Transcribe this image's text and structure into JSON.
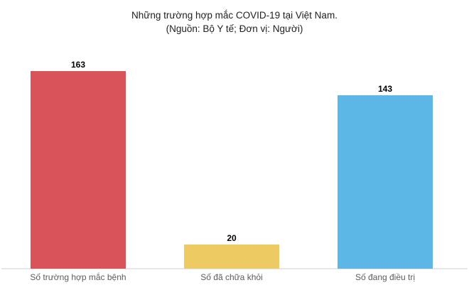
{
  "chart_data": {
    "type": "bar",
    "title": "Những trường hợp mắc COVID-19 tại Việt Nam.",
    "subtitle": "(Nguồn: Bộ Y tế; Đơn vị: Người)",
    "categories": [
      "Số trường hợp mắc bệnh",
      "Số đã chữa khỏi",
      "Số đang điều trị"
    ],
    "values": [
      163,
      20,
      143
    ],
    "series_colors": [
      "#d9545a",
      "#eeca63",
      "#5cb7e7"
    ],
    "ylim": [
      0,
      180
    ],
    "xlabel": "",
    "ylabel": "",
    "grid": false,
    "legend_position": "none",
    "value_labels_shown": true,
    "axis_line_color": "#e7e7e7",
    "background_color": "#ffffff"
  }
}
